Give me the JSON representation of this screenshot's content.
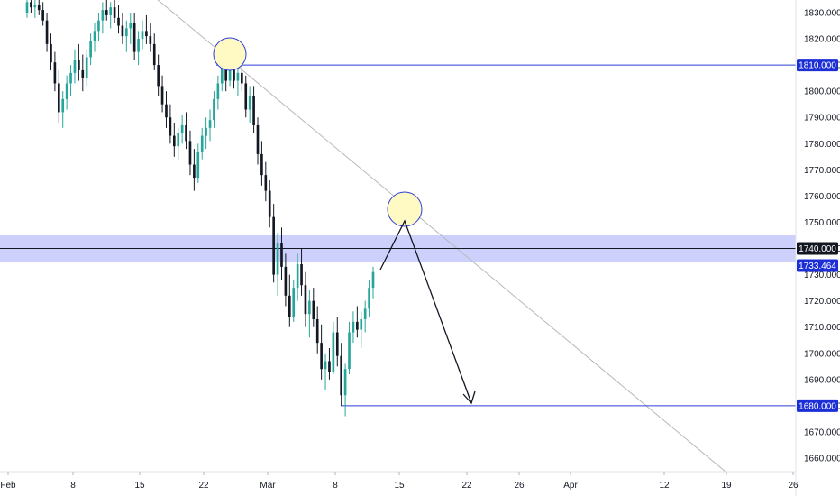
{
  "chart_data": {
    "type": "candlestick",
    "title": "",
    "xlabel": "",
    "ylabel": "",
    "ylim": [
      1653,
      1835
    ],
    "y_ticks": [
      "1830.000",
      "1820.000",
      "1810.000",
      "1800.000",
      "1790.000",
      "1780.000",
      "1770.000",
      "1760.000",
      "1750.000",
      "1740.000",
      "1730.000",
      "1720.000",
      "1710.000",
      "1700.000",
      "1690.000",
      "1680.000",
      "1670.000",
      "1660.000"
    ],
    "x_ticks": [
      "Feb",
      "8",
      "15",
      "22",
      "Mar",
      "8",
      "15",
      "22",
      "26",
      "Apr",
      "12",
      "19",
      "26"
    ],
    "price_tags": [
      {
        "label": "1810.000",
        "value": 1810,
        "style": "level"
      },
      {
        "label": "1740.000",
        "value": 1740,
        "style": "current"
      },
      {
        "label": "1733.464",
        "value": 1733.464,
        "style": "level"
      },
      {
        "label": "1680.000",
        "value": 1680,
        "style": "level"
      }
    ],
    "zone": {
      "from": 1735,
      "to": 1745
    },
    "colors": {
      "up": "#26a69a",
      "down": "#131722",
      "level_line": "#2f3fd6",
      "tag_level": "#1c2fd6",
      "tag_current": "#131722",
      "zone": "#c7cbfb",
      "trend": "#b8b8b8",
      "circle_fill": "#fff9c4",
      "circle_stroke": "#2f3fd6"
    },
    "candles_ohlc": [
      [
        1830,
        1836,
        1828,
        1834
      ],
      [
        1834,
        1838,
        1830,
        1832
      ],
      [
        1832,
        1836,
        1828,
        1833
      ],
      [
        1833,
        1837,
        1829,
        1831
      ],
      [
        1831,
        1834,
        1825,
        1827
      ],
      [
        1827,
        1830,
        1815,
        1818
      ],
      [
        1818,
        1822,
        1808,
        1811
      ],
      [
        1811,
        1815,
        1800,
        1803
      ],
      [
        1803,
        1808,
        1788,
        1792
      ],
      [
        1792,
        1800,
        1786,
        1797
      ],
      [
        1797,
        1806,
        1793,
        1803
      ],
      [
        1803,
        1810,
        1798,
        1807
      ],
      [
        1807,
        1816,
        1803,
        1812
      ],
      [
        1812,
        1818,
        1804,
        1808
      ],
      [
        1808,
        1814,
        1800,
        1805
      ],
      [
        1805,
        1816,
        1802,
        1813
      ],
      [
        1813,
        1822,
        1810,
        1819
      ],
      [
        1819,
        1826,
        1815,
        1823
      ],
      [
        1823,
        1830,
        1819,
        1827
      ],
      [
        1827,
        1834,
        1822,
        1831
      ],
      [
        1831,
        1836,
        1827,
        1829
      ],
      [
        1829,
        1834,
        1824,
        1832
      ],
      [
        1832,
        1836,
        1826,
        1828
      ],
      [
        1828,
        1833,
        1822,
        1825
      ],
      [
        1825,
        1830,
        1818,
        1821
      ],
      [
        1821,
        1827,
        1815,
        1824
      ],
      [
        1824,
        1830,
        1818,
        1826
      ],
      [
        1826,
        1830,
        1812,
        1815
      ],
      [
        1815,
        1823,
        1810,
        1820
      ],
      [
        1820,
        1827,
        1816,
        1823
      ],
      [
        1823,
        1829,
        1818,
        1821
      ],
      [
        1821,
        1826,
        1815,
        1818
      ],
      [
        1818,
        1822,
        1808,
        1810
      ],
      [
        1810,
        1814,
        1798,
        1802
      ],
      [
        1802,
        1806,
        1792,
        1795
      ],
      [
        1795,
        1800,
        1786,
        1790
      ],
      [
        1790,
        1795,
        1780,
        1783
      ],
      [
        1783,
        1788,
        1775,
        1779
      ],
      [
        1779,
        1786,
        1774,
        1784
      ],
      [
        1784,
        1791,
        1780,
        1787
      ],
      [
        1787,
        1792,
        1778,
        1781
      ],
      [
        1781,
        1785,
        1768,
        1772
      ],
      [
        1772,
        1778,
        1762,
        1767
      ],
      [
        1767,
        1780,
        1765,
        1777
      ],
      [
        1777,
        1786,
        1774,
        1783
      ],
      [
        1783,
        1790,
        1778,
        1786
      ],
      [
        1786,
        1793,
        1781,
        1789
      ],
      [
        1789,
        1800,
        1786,
        1797
      ],
      [
        1797,
        1806,
        1793,
        1803
      ],
      [
        1803,
        1812,
        1800,
        1809
      ],
      [
        1809,
        1814,
        1800,
        1804
      ],
      [
        1804,
        1812,
        1802,
        1810
      ],
      [
        1810,
        1813,
        1801,
        1804
      ],
      [
        1804,
        1810,
        1798,
        1807
      ],
      [
        1807,
        1812,
        1800,
        1803
      ],
      [
        1803,
        1806,
        1790,
        1793
      ],
      [
        1793,
        1802,
        1788,
        1798
      ],
      [
        1798,
        1802,
        1784,
        1787
      ],
      [
        1787,
        1790,
        1772,
        1776
      ],
      [
        1776,
        1781,
        1764,
        1768
      ],
      [
        1768,
        1773,
        1758,
        1762
      ],
      [
        1762,
        1766,
        1748,
        1752
      ],
      [
        1752,
        1757,
        1727,
        1730
      ],
      [
        1730,
        1746,
        1722,
        1742
      ],
      [
        1742,
        1748,
        1728,
        1733
      ],
      [
        1733,
        1738,
        1718,
        1722
      ],
      [
        1722,
        1730,
        1710,
        1714
      ],
      [
        1714,
        1728,
        1712,
        1725
      ],
      [
        1725,
        1738,
        1720,
        1734
      ],
      [
        1734,
        1740,
        1722,
        1726
      ],
      [
        1726,
        1731,
        1710,
        1715
      ],
      [
        1715,
        1724,
        1706,
        1720
      ],
      [
        1720,
        1725,
        1710,
        1713
      ],
      [
        1713,
        1718,
        1700,
        1704
      ],
      [
        1704,
        1711,
        1690,
        1694
      ],
      [
        1694,
        1700,
        1686,
        1697
      ],
      [
        1697,
        1702,
        1690,
        1693
      ],
      [
        1693,
        1712,
        1692,
        1708
      ],
      [
        1708,
        1714,
        1695,
        1699
      ],
      [
        1699,
        1704,
        1680,
        1684
      ],
      [
        1684,
        1696,
        1676,
        1694
      ],
      [
        1694,
        1712,
        1692,
        1708
      ],
      [
        1708,
        1716,
        1704,
        1712
      ],
      [
        1712,
        1718,
        1706,
        1709
      ],
      [
        1709,
        1716,
        1702,
        1713
      ],
      [
        1713,
        1720,
        1708,
        1717
      ],
      [
        1717,
        1728,
        1714,
        1725
      ],
      [
        1725,
        1733,
        1721,
        1731
      ]
    ]
  }
}
